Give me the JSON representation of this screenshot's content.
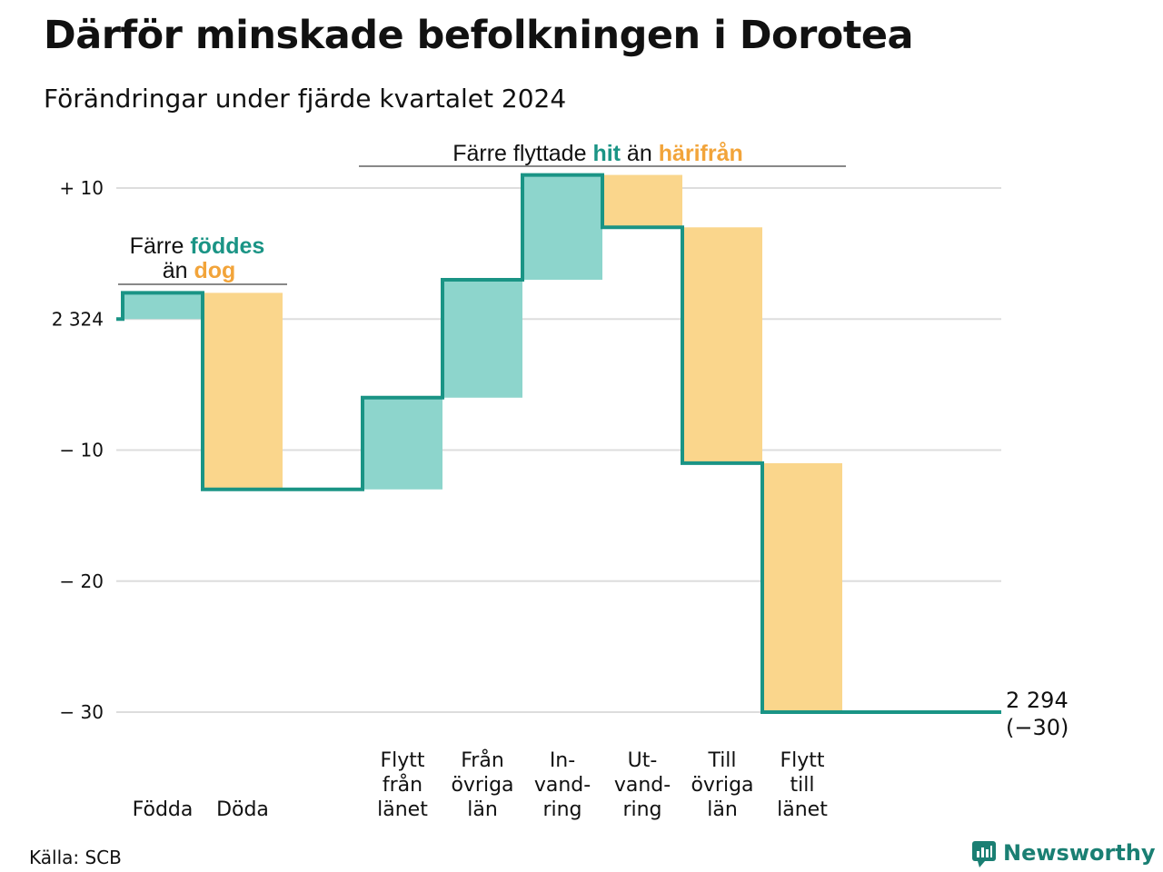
{
  "title": "Därför minskade befolkningen i Dorotea",
  "subtitle": "Förändringar under fjärde kvartalet 2024",
  "source": "Källa: SCB",
  "brand": {
    "name": "Newsworthy",
    "icon": "newsworthy-logo-icon",
    "color": "#1a7f73"
  },
  "colors": {
    "increase": "#8dd5cc",
    "decrease": "#fad68c",
    "line": "#1a9485",
    "teal_text": "#1a9485",
    "orange_text": "#f2a43a"
  },
  "annotations": {
    "births": {
      "line1_pre": "Färre ",
      "line1_teal": "föddes",
      "line2_pre": "än ",
      "line2_orange": "dog"
    },
    "migration": {
      "pre": "Färre flyttade ",
      "teal": "hit",
      "mid": " än ",
      "orange": "härifrån"
    }
  },
  "chart_data": {
    "type": "waterfall",
    "start": {
      "label": "2 324",
      "value": 2324
    },
    "end": {
      "label": "2 294",
      "sublabel": "(−30)",
      "value": 2294,
      "change": -30
    },
    "ylim": [
      -30,
      10
    ],
    "y_ticks": [
      {
        "value": 10,
        "label": "+ 10"
      },
      {
        "value": 0,
        "label": "2 324"
      },
      {
        "value": -10,
        "label": "− 10"
      },
      {
        "value": -20,
        "label": "− 20"
      },
      {
        "value": -30,
        "label": "− 30"
      }
    ],
    "grid": true,
    "steps": [
      {
        "category": [
          "Födda"
        ],
        "value": 2,
        "kind": "increase"
      },
      {
        "category": [
          "Döda"
        ],
        "value": -15,
        "kind": "decrease"
      },
      {
        "category": [],
        "value": 0,
        "kind": "gap"
      },
      {
        "category": [
          "Flytt",
          "från",
          "länet"
        ],
        "value": 7,
        "kind": "increase"
      },
      {
        "category": [
          "Från",
          "övriga",
          "län"
        ],
        "value": 9,
        "kind": "increase"
      },
      {
        "category": [
          "In-",
          "vand-",
          "ring"
        ],
        "value": 8,
        "kind": "increase"
      },
      {
        "category": [
          "Ut-",
          "vand-",
          "ring"
        ],
        "value": -4,
        "kind": "decrease"
      },
      {
        "category": [
          "Till",
          "övriga",
          "län"
        ],
        "value": -18,
        "kind": "decrease"
      },
      {
        "category": [
          "Flytt",
          "till",
          "länet"
        ],
        "value": -19,
        "kind": "decrease"
      }
    ]
  }
}
